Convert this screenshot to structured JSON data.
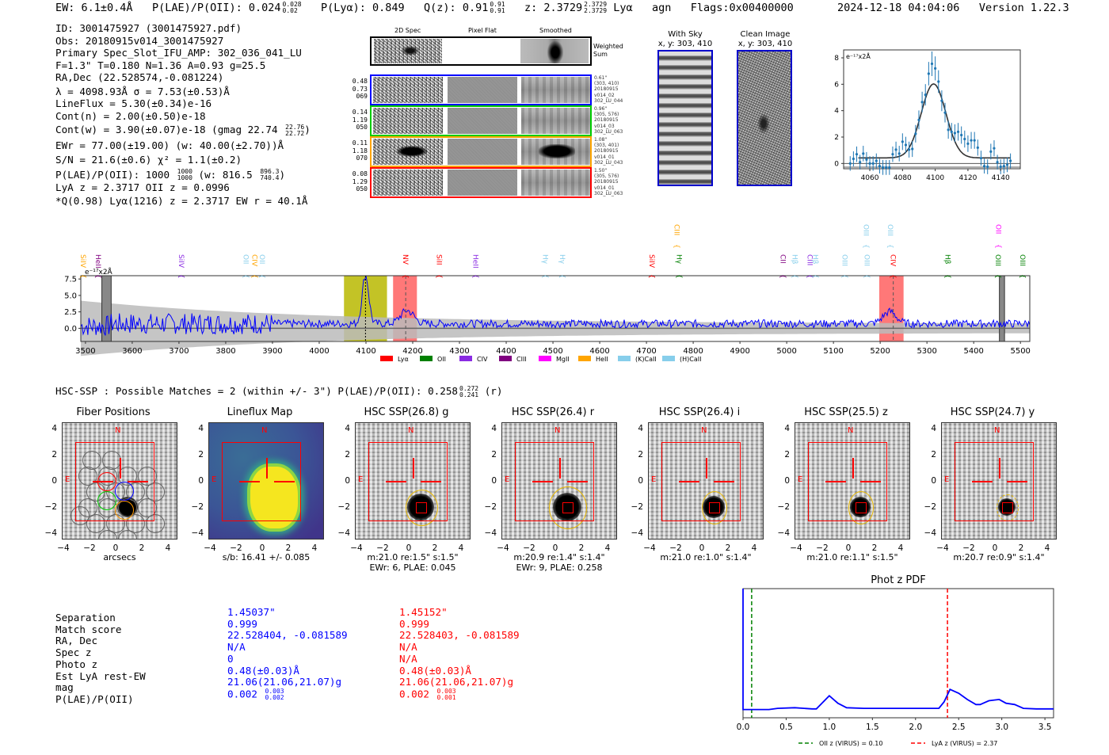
{
  "header": {
    "ew": "EW: 6.1±0.4Å",
    "plae_label": "P(LAE)/P(OII): 0.024",
    "plae_hi": "0.028",
    "plae_lo": "0.02",
    "plya": "P(Lyα): 0.849",
    "qz_label": "Q(z): 0.91",
    "qz_hi": "0.91",
    "qz_lo": "0.91",
    "z_label": "z: 2.3729",
    "z_hi": "2.3729",
    "z_lo": "2.3729",
    "line": "Lyα",
    "agn": "agn",
    "flags": "Flags:0x00400000",
    "timestamp": "2024-12-18 04:04:06",
    "version": "Version 1.22.3"
  },
  "info": {
    "lines": [
      "ID: 3001475927 (3001475927.pdf)",
      "Obs: 20180915v014_3001475927",
      "Primary Spec_Slot_IFU_AMP: 302_036_041_LU",
      "F=1.3\"  T=0.180  N=1.36  A=0.93  g=25.5",
      "RA,Dec (22.528574,-0.081224)",
      "λ = 4098.93Å   σ = 7.53(±0.53)Å",
      "LineFlux = 5.30(±0.34)e-16",
      "Cont(n) = 2.00(±0.50)e-18"
    ],
    "contw": "Cont(w) = 3.90(±0.07)e-18 (gmag 22.74",
    "contw_hi": "22.76",
    "contw_lo": "22.72",
    "ewr": "EWr = 77.00(±19.00) (w: 40.00(±2.70))Å",
    "sn": "S/N = 21.6(±0.6)  χ² = 1.1(±0.2)",
    "plae": "P(LAE)/P(OII): 1000",
    "plae_hi": "1000",
    "plae_lo": "1000",
    "plae_w": "(w: 816.5",
    "plae_w_hi": "896.3",
    "plae_w_lo": "740.4",
    "lyaz": "LyA z = 2.3717   OII z = 0.0996",
    "q": "*Q(0.98) Lyα(1216) z = 2.3717   EW r = 40.1Å"
  },
  "cutouts": {
    "col_headers": [
      "2D Spec",
      "Pixel Flat",
      "Smoothed"
    ],
    "weighted_sum": "Weighted Sum",
    "rows": [
      {
        "color": "#0000ff",
        "left": [
          "0.48",
          "0.73",
          "069"
        ],
        "right": [
          "0.61\"",
          "(303, 410)",
          "20180915",
          "v014_02",
          "302_LU_044"
        ]
      },
      {
        "color": "#00cc00",
        "left": [
          "0.14",
          "1.19",
          "050"
        ],
        "right": [
          "0.96\"",
          "(305, 576)",
          "20180915",
          "v014_03",
          "302_LU_063"
        ]
      },
      {
        "color": "#ffa500",
        "left": [
          "0.11",
          "1.18",
          "070"
        ],
        "right": [
          "1.08\"",
          "(303, 401)",
          "20180915",
          "v014_01",
          "302_LU_043"
        ]
      },
      {
        "color": "#ff0000",
        "left": [
          "0.08",
          "1.29",
          "050"
        ],
        "right": [
          "1.50\"",
          "(305, 576)",
          "20180915",
          "v014_01",
          "302_LU_063"
        ]
      }
    ]
  },
  "ccd": {
    "with_sky_title": "With Sky",
    "with_sky_xy": "x, y: 303, 410",
    "clean_title": "Clean Image",
    "clean_xy": "x, y: 303, 410"
  },
  "fit_chart": {
    "unit_label": "e⁻¹⁷x2Å",
    "xticks": [
      "4060",
      "4080",
      "4100",
      "4120",
      "4140"
    ],
    "yticks": [
      "0",
      "2",
      "4",
      "6",
      "8"
    ]
  },
  "spectrum": {
    "unit_label": "e⁻¹⁷x2Å",
    "xticks": [
      "3500",
      "3600",
      "3700",
      "3800",
      "3900",
      "4000",
      "4100",
      "4200",
      "4300",
      "4400",
      "4500",
      "4600",
      "4700",
      "4800",
      "4900",
      "5000",
      "5100",
      "5200",
      "5300",
      "5400",
      "5500"
    ],
    "yticks": [
      "7.5",
      "5.0",
      "2.5",
      "0.0"
    ],
    "legend": [
      {
        "label": "Lyα",
        "color": "#ff0000"
      },
      {
        "label": "OII",
        "color": "#008000"
      },
      {
        "label": "CIV",
        "color": "#8a2be2"
      },
      {
        "label": "CIII",
        "color": "#800080"
      },
      {
        "label": "MgII",
        "color": "#ff00ff"
      },
      {
        "label": "HeII",
        "color": "#ffa500"
      },
      {
        "label": "(K)CaII",
        "color": "#87ceeb"
      },
      {
        "label": "(H)CaII",
        "color": "#87ceeb"
      }
    ],
    "line_labels": [
      {
        "label": "SiIV",
        "wave": 3495,
        "color": "#ffa500",
        "row": 1
      },
      {
        "label": "HeII",
        "wave": 3527,
        "color": "#800080",
        "row": 1
      },
      {
        "label": "SiIV",
        "wave": 3705,
        "color": "#8a2be2",
        "row": 1
      },
      {
        "label": "OII",
        "wave": 3843,
        "color": "#87ceeb",
        "row": 1
      },
      {
        "label": "CIV",
        "wave": 3862,
        "color": "#ffa500",
        "row": 1
      },
      {
        "label": "OII",
        "wave": 3878,
        "color": "#87ceeb",
        "row": 1
      },
      {
        "label": "NV",
        "wave": 4185,
        "color": "#ff0000",
        "row": 1
      },
      {
        "label": "SiII",
        "wave": 4257,
        "color": "#ff0000",
        "row": 1
      },
      {
        "label": "HeII",
        "wave": 4335,
        "color": "#8a2be2",
        "row": 1
      },
      {
        "label": "Hγ",
        "wave": 4484,
        "color": "#87ceeb",
        "row": 1
      },
      {
        "label": "Hγ",
        "wave": 4520,
        "color": "#87ceeb",
        "row": 1
      },
      {
        "label": "SiIV",
        "wave": 4712,
        "color": "#ff0000",
        "row": 1
      },
      {
        "label": "CIII",
        "wave": 4765,
        "color": "#ffa500",
        "row": 0
      },
      {
        "label": "Hγ",
        "wave": 4770,
        "color": "#008000",
        "row": 1
      },
      {
        "label": "CII",
        "wave": 4992,
        "color": "#800080",
        "row": 1
      },
      {
        "label": "Hβ",
        "wave": 5018,
        "color": "#87ceeb",
        "row": 1
      },
      {
        "label": "CIII",
        "wave": 5050,
        "color": "#8a2be2",
        "row": 1
      },
      {
        "label": "Hβ",
        "wave": 5062,
        "color": "#87ceeb",
        "row": 1
      },
      {
        "label": "OIII",
        "wave": 5124,
        "color": "#87ceeb",
        "row": 1
      },
      {
        "label": "OIII",
        "wave": 5172,
        "color": "#87ceeb",
        "row": 1
      },
      {
        "label": "OIII",
        "wave": 5170,
        "color": "#87ceeb",
        "row": 0
      },
      {
        "label": "OIII",
        "wave": 5222,
        "color": "#87ceeb",
        "row": 0
      },
      {
        "label": "CIV",
        "wave": 5228,
        "color": "#ff0000",
        "row": 1
      },
      {
        "label": "Hβ",
        "wave": 5345,
        "color": "#008000",
        "row": 1
      },
      {
        "label": "OII",
        "wave": 5453,
        "color": "#ff00ff",
        "row": 0
      },
      {
        "label": "OIII",
        "wave": 5452,
        "color": "#008000",
        "row": 1
      },
      {
        "label": "OIII",
        "wave": 5505,
        "color": "#008000",
        "row": 1
      }
    ]
  },
  "hsc": {
    "summary": "HSC-SSP : Possible Matches = 2 (within +/- 3\")  P(LAE)/P(OII): 0.258",
    "summary_hi": "0.272",
    "summary_lo": "0.241",
    "summary_band": "(r)",
    "panels": [
      {
        "title": "Fiber Positions",
        "caption1": "arcsecs",
        "caption2": ""
      },
      {
        "title": "Lineflux Map",
        "caption1": "s/b: 16.41 +/- 0.085",
        "caption2": ""
      },
      {
        "title": "HSC SSP(26.8) g",
        "caption1": "m:21.0  re:1.5\"  s:1.5\"",
        "caption2": "EWr: 6, PLAE: 0.045"
      },
      {
        "title": "HSC SSP(26.4) r",
        "caption1": "m:20.9  re:1.4\"  s:1.4\"",
        "caption2": "EWr: 9, PLAE: 0.258"
      },
      {
        "title": "HSC SSP(26.4) i",
        "caption1": "m:21.0  re:1.0\"  s:1.4\"",
        "caption2": ""
      },
      {
        "title": "HSC SSP(25.5) z",
        "caption1": "m:21.0  re:1.1\"  s:1.5\"",
        "caption2": ""
      },
      {
        "title": "HSC SSP(24.7) y",
        "caption1": "m:20.7  re:0.9\"  s:1.4\"",
        "caption2": ""
      }
    ],
    "axis_ticks": [
      "4",
      "2",
      "0",
      "−2",
      "−4"
    ],
    "x_ticks": [
      "−4",
      "−2",
      "0",
      "2",
      "4"
    ],
    "compass_n": "N",
    "compass_e": "E"
  },
  "matches": {
    "labels": [
      "Separation",
      "Match score",
      "RA, Dec",
      "Spec z",
      "Photo z",
      "Est LyA rest-EW",
      "mag",
      "P(LAE)/P(OII)"
    ],
    "match1": {
      "color": "#0000ff",
      "values": [
        "1.45037\"",
        "0.999",
        "22.528404, -0.081589",
        "N/A",
        "0",
        "0.48(±0.03)Å",
        "21.06(21.06,21.07)g",
        "0.002"
      ],
      "plae_hi": "0.003",
      "plae_lo": "0.002"
    },
    "match2": {
      "color": "#ff0000",
      "values": [
        "1.45152\"",
        "0.999",
        "22.528403, -0.081589",
        "N/A",
        "N/A",
        "0.48(±0.03)Å",
        "21.06(21.06,21.07)g",
        "0.002"
      ],
      "plae_hi": "0.003",
      "plae_lo": "0.001"
    }
  },
  "chart_data": [
    {
      "type": "line",
      "title": "Phot z PDF",
      "xlabel": "",
      "ylabel": "",
      "xlim": [
        0.0,
        3.6
      ],
      "xticks": [
        "0.0",
        "0.5",
        "1.0",
        "1.5",
        "2.0",
        "2.5",
        "3.0",
        "3.5"
      ],
      "series": [
        {
          "name": "PDF",
          "color": "#0000ff",
          "x": [
            0.0,
            0.0,
            0.01,
            0.3,
            0.4,
            0.6,
            0.8,
            0.85,
            1.0,
            1.1,
            1.2,
            1.4,
            1.8,
            2.2,
            2.27,
            2.33,
            2.4,
            2.5,
            2.6,
            2.7,
            2.75,
            2.85,
            2.97,
            3.05,
            3.15,
            3.25,
            3.4,
            3.6
          ],
          "y": [
            1.0,
            0.04,
            0.04,
            0.04,
            0.05,
            0.055,
            0.045,
            0.045,
            0.15,
            0.09,
            0.055,
            0.05,
            0.05,
            0.05,
            0.05,
            0.1,
            0.2,
            0.17,
            0.12,
            0.08,
            0.08,
            0.11,
            0.12,
            0.09,
            0.08,
            0.05,
            0.045,
            0.045
          ]
        }
      ],
      "vlines": [
        {
          "label": "OII z (VIRUS) = 0.10",
          "x": 0.1,
          "color": "#008000"
        },
        {
          "label": "LyA z (VIRUS) = 2.37",
          "x": 2.37,
          "color": "#ff0000"
        }
      ],
      "legend": "bottom-center"
    },
    {
      "type": "scatter",
      "title": "",
      "xlabel": "",
      "ylabel": "e-17 x2Å",
      "xlim": [
        4044,
        4152
      ],
      "ylim": [
        -0.4,
        8.6
      ],
      "points": [
        {
          "x": 4048,
          "y": 0.0
        },
        {
          "x": 4050,
          "y": 0.35
        },
        {
          "x": 4052,
          "y": 0.7
        },
        {
          "x": 4054,
          "y": 0.1
        },
        {
          "x": 4056,
          "y": 0.75
        },
        {
          "x": 4058,
          "y": 0.3
        },
        {
          "x": 4060,
          "y": 0.0
        },
        {
          "x": 4062,
          "y": 0.0
        },
        {
          "x": 4064,
          "y": 0.2
        },
        {
          "x": 4066,
          "y": -0.2
        },
        {
          "x": 4068,
          "y": -0.3
        },
        {
          "x": 4070,
          "y": -0.3
        },
        {
          "x": 4072,
          "y": -0.3
        },
        {
          "x": 4074,
          "y": 0.7
        },
        {
          "x": 4076,
          "y": 1.05
        },
        {
          "x": 4078,
          "y": 0.75
        },
        {
          "x": 4080,
          "y": 1.65
        },
        {
          "x": 4082,
          "y": 1.4
        },
        {
          "x": 4084,
          "y": 1.05
        },
        {
          "x": 4086,
          "y": 1.1
        },
        {
          "x": 4088,
          "y": 2.25
        },
        {
          "x": 4090,
          "y": 3.3
        },
        {
          "x": 4092,
          "y": 4.65
        },
        {
          "x": 4094,
          "y": 5.2
        },
        {
          "x": 4096,
          "y": 6.8
        },
        {
          "x": 4098,
          "y": 7.55
        },
        {
          "x": 4100,
          "y": 7.2
        },
        {
          "x": 4102,
          "y": 6.2
        },
        {
          "x": 4104,
          "y": 4.75
        },
        {
          "x": 4106,
          "y": 3.85
        },
        {
          "x": 4108,
          "y": 2.55
        },
        {
          "x": 4110,
          "y": 2.4
        },
        {
          "x": 4112,
          "y": 2.3
        },
        {
          "x": 4114,
          "y": 2.4
        },
        {
          "x": 4116,
          "y": 2.15
        },
        {
          "x": 4118,
          "y": 1.85
        },
        {
          "x": 4120,
          "y": 1.5
        },
        {
          "x": 4122,
          "y": 1.75
        },
        {
          "x": 4124,
          "y": 1.75
        },
        {
          "x": 4126,
          "y": 1.2
        },
        {
          "x": 4128,
          "y": 0.4
        },
        {
          "x": 4130,
          "y": -0.2
        },
        {
          "x": 4132,
          "y": -0.25
        },
        {
          "x": 4134,
          "y": 0.9
        },
        {
          "x": 4136,
          "y": 1.15
        },
        {
          "x": 4138,
          "y": 0.1
        },
        {
          "x": 4140,
          "y": -0.25
        },
        {
          "x": 4142,
          "y": -0.2
        },
        {
          "x": 4144,
          "y": -0.1
        },
        {
          "x": 4146,
          "y": 0.2
        }
      ],
      "fit": {
        "center": 4099.0,
        "sigma": 7.53,
        "amplitude": 5.6,
        "continuum": 0.42,
        "xrange": [
          4053,
          4146
        ]
      },
      "yticks": [
        "0",
        "2",
        "4",
        "6",
        "8"
      ],
      "xticks": [
        "4060",
        "4080",
        "4100",
        "4120",
        "4140"
      ]
    },
    {
      "type": "line",
      "title": "",
      "xlabel": "",
      "ylabel": "e-17 x2Å",
      "xlim": [
        3490,
        5520
      ],
      "ylim": [
        -2.0,
        8.0
      ],
      "grid": false,
      "highlight_bands": [
        {
          "from": 4053,
          "to": 4145,
          "color": "#b8b800",
          "note": "Lyα detection window"
        },
        {
          "from": 4158,
          "to": 4209,
          "color": "#ff6060",
          "note": "NV"
        },
        {
          "from": 5198,
          "to": 5250,
          "color": "#ff6060",
          "note": "CIV"
        }
      ],
      "masked_bands": [
        {
          "from": 3535,
          "to": 3555
        },
        {
          "from": 5455,
          "to": 5466
        }
      ],
      "peak": {
        "x": 4099,
        "y": 7.4
      },
      "secondary_features": [
        {
          "x": 4188,
          "y": 2.5
        },
        {
          "x": 5220,
          "y": 2.3
        }
      ],
      "continuum_level": 0.7
    }
  ]
}
